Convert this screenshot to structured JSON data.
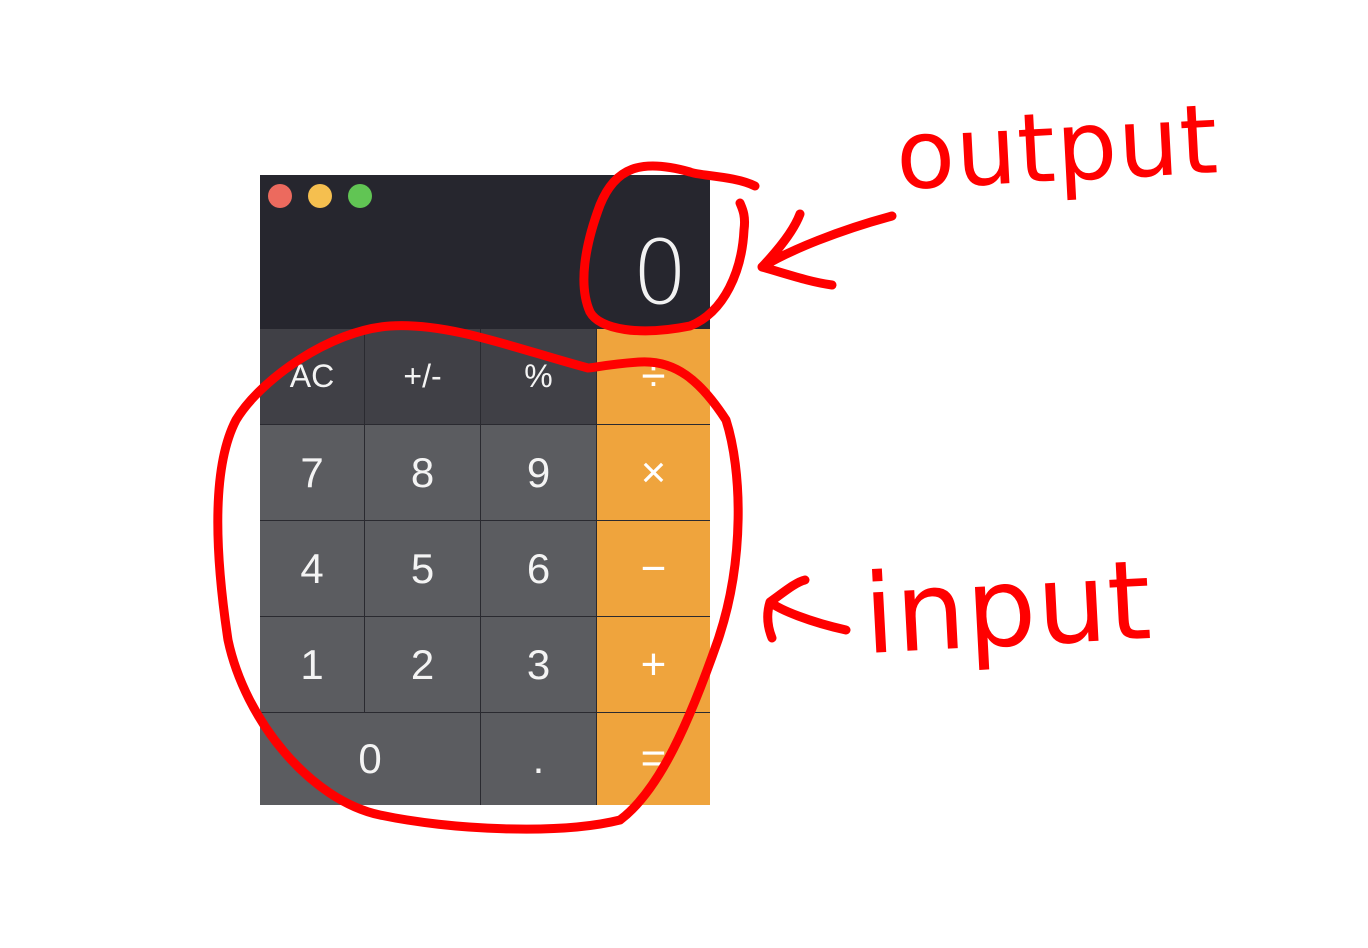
{
  "window": {
    "controls": [
      {
        "name": "close",
        "color": "#ec6a5e"
      },
      {
        "name": "minimize",
        "color": "#f5bf4f"
      },
      {
        "name": "zoom",
        "color": "#61c554"
      }
    ]
  },
  "display": {
    "value": "0"
  },
  "keypad": {
    "row1": {
      "ac": "AC",
      "sign": "+/-",
      "percent": "%",
      "divide": "÷"
    },
    "row2": {
      "seven": "7",
      "eight": "8",
      "nine": "9",
      "multiply": "×"
    },
    "row3": {
      "four": "4",
      "five": "5",
      "six": "6",
      "minus": "−"
    },
    "row4": {
      "one": "1",
      "two": "2",
      "three": "3",
      "plus": "+"
    },
    "row5": {
      "zero": "0",
      "decimal": ".",
      "equals": "="
    }
  },
  "colors": {
    "operator": "#efa43d",
    "digit": "#5b5c60",
    "function": "#404046",
    "display_bg": "#26262e",
    "annotation": "#ff0000"
  },
  "annotations": {
    "output_label": "output",
    "input_label": "input"
  }
}
